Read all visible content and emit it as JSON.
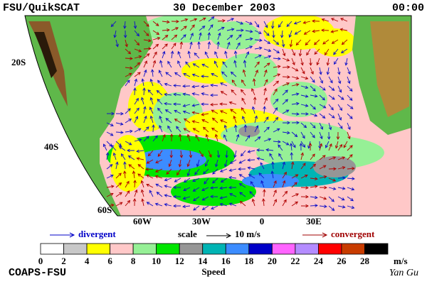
{
  "header": {
    "left": "FSU/QuikSCAT",
    "center": "30 December 2003",
    "right": "00:00"
  },
  "map": {
    "lat_labels": [
      "20S",
      "40S",
      "60S"
    ],
    "lon_labels": [
      "60W",
      "30W",
      "0",
      "30E"
    ]
  },
  "legend": {
    "divergent": "divergent",
    "scale": "scale",
    "scale_value": "10 m/s",
    "convergent": "convergent"
  },
  "colorbar": {
    "colors": [
      "#ffffff",
      "#c8c8c8",
      "#ffff00",
      "#ffc8c8",
      "#96f096",
      "#00e600",
      "#969696",
      "#00b4b4",
      "#3c8cff",
      "#0000c8",
      "#ff64ff",
      "#b48cff",
      "#ff0000",
      "#c83c00",
      "#000000"
    ],
    "ticks": [
      0,
      2,
      4,
      6,
      8,
      10,
      12,
      14,
      16,
      18,
      20,
      22,
      24,
      26,
      28
    ],
    "unit": "m/s",
    "label": "Speed"
  },
  "footer": {
    "left": "COAPS-FSU",
    "right": "Yan Gu"
  }
}
